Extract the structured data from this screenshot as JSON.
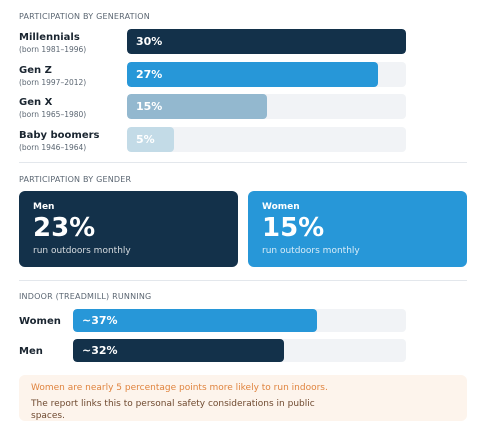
{
  "generation": {
    "title": "PARTICIPATION BY GENERATION",
    "rows": [
      {
        "name": "Millennials",
        "years": "(born 1981–1996)",
        "label": "30%",
        "value": 30
      },
      {
        "name": "Gen Z",
        "years": "(born 1997–2012)",
        "label": "27%",
        "value": 27
      },
      {
        "name": "Gen X",
        "years": "(born 1965–1980)",
        "label": "15%",
        "value": 15
      },
      {
        "name": "Baby boomers",
        "years": "(born 1946–1964)",
        "label": "5%",
        "value": 5
      }
    ],
    "colors": [
      "#13314a",
      "#2797d8",
      "#93b8cf",
      "#c3dbe7"
    ]
  },
  "gender": {
    "title": "PARTICIPATION BY GENDER",
    "cards": [
      {
        "label": "Men",
        "pct": "23%",
        "sub": "run outdoors monthly",
        "color": "#13314a"
      },
      {
        "label": "Women",
        "pct": "15%",
        "sub": "run outdoors monthly",
        "color": "#2797d8"
      }
    ]
  },
  "indoor": {
    "title": "INDOOR (TREADMILL) RUNNING",
    "rows": [
      {
        "name": "Women",
        "label": "~37%",
        "value": 37,
        "color": "#2797d8"
      },
      {
        "name": "Men",
        "label": "~32%",
        "value": 32,
        "color": "#13314a"
      }
    ]
  },
  "note": {
    "line1": "Women are nearly 5 percentage points more likely to run indoors.",
    "line2": "The report links this to personal safety considerations in public spaces."
  }
}
